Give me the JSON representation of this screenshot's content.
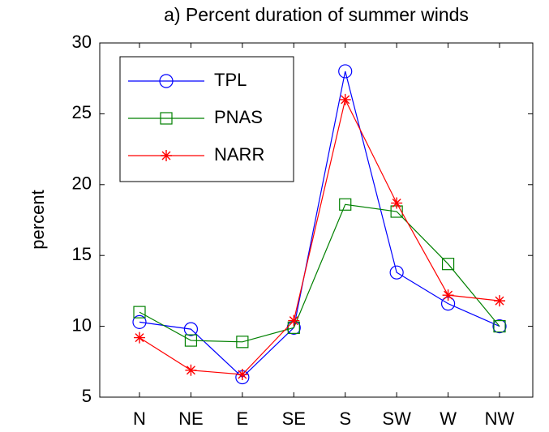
{
  "chart_data": {
    "type": "line",
    "title": "a) Percent duration of summer winds",
    "y_label": "percent",
    "categories": [
      "N",
      "NE",
      "E",
      "SE",
      "S",
      "SW",
      "W",
      "NW"
    ],
    "series": [
      {
        "name": "TPL",
        "color": "#0000ff",
        "marker": "circle",
        "values": [
          10.3,
          9.8,
          6.4,
          9.9,
          28.0,
          13.8,
          11.6,
          10.0
        ]
      },
      {
        "name": "PNAS",
        "color": "#008000",
        "marker": "square",
        "values": [
          11.0,
          9.0,
          8.9,
          9.9,
          18.6,
          18.1,
          14.4,
          10.0
        ]
      },
      {
        "name": "NARR",
        "color": "#ff0000",
        "marker": "star",
        "values": [
          9.2,
          6.9,
          6.6,
          10.4,
          26.0,
          18.7,
          12.2,
          11.8
        ]
      }
    ],
    "ylim": [
      5,
      30
    ],
    "yticks": [
      5,
      10,
      15,
      20,
      25,
      30
    ],
    "grid": false,
    "legend": "northwest"
  }
}
